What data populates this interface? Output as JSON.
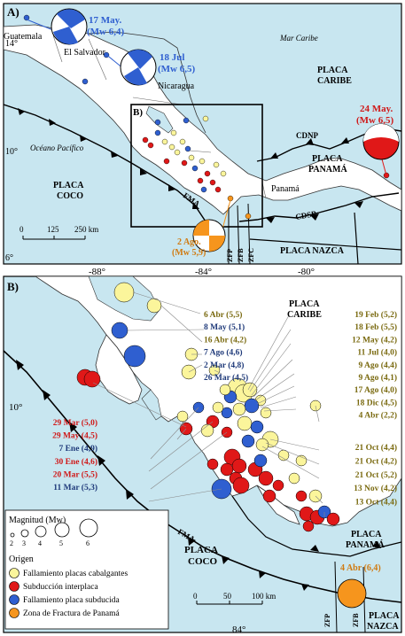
{
  "colors": {
    "sea": "#c8e6f0",
    "land": "#ffffff",
    "border": "#000000",
    "yellow": "#fbf59b",
    "red": "#e01818",
    "blue": "#2f5fd0",
    "orange": "#f6951d",
    "dark_blue_text": "#1f3a7a",
    "olive_text": "#7a6a10",
    "red_text": "#d01818"
  },
  "panelA": {
    "label": "A)",
    "labels": {
      "guatemala": "Guatemala",
      "el_salvador": "El Salvador",
      "nicaragua": "Nicaragua",
      "mar_caribe": "Mar Caribe",
      "placa_caribe_1": "PLACA",
      "placa_caribe_2": "CARIBE",
      "oceano": "Océano Pacífico",
      "placa_coco_1": "PLACA",
      "placa_coco_2": "COCO",
      "cdnp": "CDNP",
      "placa_panama_1": "PLACA",
      "placa_panama_2": "PANAMÁ",
      "panama": "Panamá",
      "fma": "FMA",
      "cdsp": "CDSP",
      "placa_nazca": "PLACA NAZCA",
      "zfp": "ZFP",
      "zfb": "ZFB",
      "zfc": "ZFC",
      "inset_b": "B)"
    },
    "events": {
      "e1_line1": "17 May.",
      "e1_line2": "(Mw 6,4)",
      "e2_line1": "18 Jul",
      "e2_line2": "(Mw 6,5)",
      "e3_line1": "24 May.",
      "e3_line2": "(Mw 6,5)",
      "e4_line1": "2 Ago.",
      "e4_line2": "(Mw 5,9)"
    },
    "lat_ticks": [
      "14°",
      "10°",
      "6°"
    ],
    "lon_ticks": [
      "-88°",
      "-84°",
      "-80°"
    ],
    "scale": [
      "0",
      "125",
      "250 km"
    ]
  },
  "panelB": {
    "label": "B)",
    "labels": {
      "placa_caribe_1": "PLACA",
      "placa_caribe_2": "CARIBE",
      "placa_coco_1": "PLACA",
      "placa_coco_2": "COCO",
      "placa_panama_1": "PLACA",
      "placa_panama_2": "PANAMÁ",
      "placa_nazca_1": "PLACA",
      "placa_nazca_2": "NAZCA",
      "fma": "FMA",
      "zfp": "ZFP",
      "zfb": "ZFB",
      "lat": "10°",
      "lon": "84°"
    },
    "scale": [
      "0",
      "50",
      "100 km"
    ],
    "events_left": [
      {
        "text": "6 Abr (5,5)",
        "color": "olive"
      },
      {
        "text": "8 May (5,1)",
        "color": "blue"
      },
      {
        "text": "16 Abr (4,2)",
        "color": "olive"
      },
      {
        "text": "7 Ago (4,6)",
        "color": "blue"
      },
      {
        "text": "2 Mar (4,8)",
        "color": "blue"
      },
      {
        "text": "26 Mar (4,5)",
        "color": "blue"
      }
    ],
    "events_left_bottom": [
      {
        "text": "29 Mar (5,0)",
        "color": "red"
      },
      {
        "text": "29 May (4,5)",
        "color": "red"
      },
      {
        "text": "7 Ene (4,9)",
        "color": "blue"
      },
      {
        "text": "30 Ene (4,6)",
        "color": "red"
      },
      {
        "text": "20 Mar (5,5)",
        "color": "red"
      },
      {
        "text": "11 Mar (5,3)",
        "color": "blue"
      }
    ],
    "events_right": [
      {
        "text": "19 Feb (5,2)",
        "color": "olive"
      },
      {
        "text": "18 Feb (5,5)",
        "color": "olive"
      },
      {
        "text": "12 May (4,2)",
        "color": "olive"
      },
      {
        "text": "11 Jul (4,0)",
        "color": "olive"
      },
      {
        "text": "9 Ago (4,4)",
        "color": "olive"
      },
      {
        "text": "9 Ago (4,1)",
        "color": "olive"
      },
      {
        "text": "17 Ago (4,0)",
        "color": "olive"
      },
      {
        "text": "18 Dic (4,5)",
        "color": "olive"
      },
      {
        "text": "4 Abr (2,2)",
        "color": "olive"
      }
    ],
    "events_right_bottom": [
      {
        "text": "21 Oct (4,4)",
        "color": "olive"
      },
      {
        "text": "21 Oct (4,2)",
        "color": "olive"
      },
      {
        "text": "21 Oct (5,2)",
        "color": "olive"
      },
      {
        "text": "13 Nov (4,2)",
        "color": "olive"
      },
      {
        "text": "13 Oct (4,4)",
        "color": "olive"
      }
    ],
    "orange_event": "4 Abr (6,4)"
  },
  "legend": {
    "title": "Magnitud (Mw)",
    "sizes": [
      "2",
      "3",
      "4",
      "5",
      "6"
    ],
    "origin_title": "Origen",
    "items": [
      {
        "label": "Fallamiento placas cabalgantes",
        "color": "#fbf59b"
      },
      {
        "label": "Subducción interplaca",
        "color": "#e01818"
      },
      {
        "label": "Fallamiento placa subducida",
        "color": "#2f5fd0"
      },
      {
        "label": "Zona de Fractura de Panamá",
        "color": "#f6951d"
      }
    ]
  }
}
